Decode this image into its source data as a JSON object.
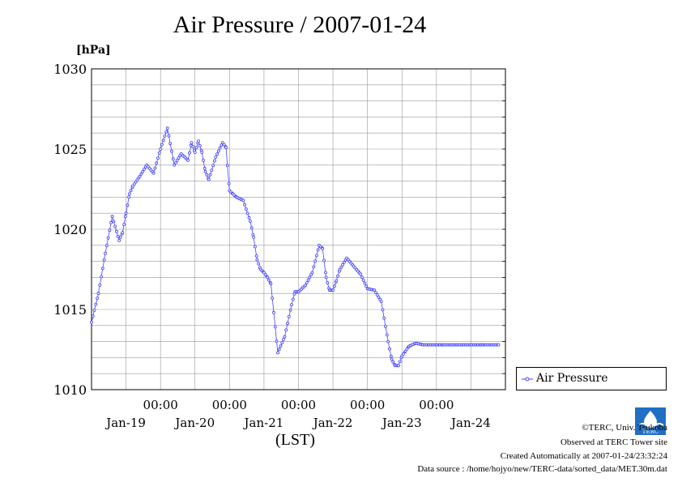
{
  "chart_data": {
    "type": "line",
    "title": "Air Pressure / 2007-01-24",
    "ylabel": "[hPa]",
    "xlabel": "(LST)",
    "ylim": [
      1010,
      1030
    ],
    "yticks": [
      1010,
      1015,
      1020,
      1025,
      1030
    ],
    "yticklabels": [
      "1010",
      "1015",
      "1020",
      "1025",
      "1030"
    ],
    "xlim": [
      -1.0,
      5.0
    ],
    "xticks": [
      0,
      1,
      2,
      3,
      4
    ],
    "xticklabels_time": [
      "00:00",
      "00:00",
      "00:00",
      "00:00",
      "00:00"
    ],
    "date_labels": [
      "Jan-19",
      "Jan-20",
      "Jan-21",
      "Jan-22",
      "Jan-23",
      "Jan-24"
    ],
    "grid": true,
    "legend_position": "right",
    "series": [
      {
        "name": "Air Pressure",
        "color": "#3b3bff",
        "x": [
          -1.0,
          -0.9,
          -0.8,
          -0.7,
          -0.6,
          -0.55,
          -0.5,
          -0.45,
          -0.4,
          -0.3,
          -0.2,
          -0.1,
          0.0,
          0.1,
          0.2,
          0.3,
          0.4,
          0.45,
          0.5,
          0.55,
          0.6,
          0.65,
          0.7,
          0.8,
          0.9,
          0.95,
          1.0,
          1.05,
          1.1,
          1.2,
          1.3,
          1.35,
          1.4,
          1.45,
          1.5,
          1.55,
          1.6,
          1.7,
          1.8,
          1.9,
          1.95,
          2.0,
          2.1,
          2.2,
          2.3,
          2.35,
          2.4,
          2.45,
          2.5,
          2.55,
          2.6,
          2.7,
          2.8,
          2.9,
          3.0,
          3.1,
          3.2,
          3.3,
          3.35,
          3.4,
          3.45,
          3.5,
          3.55,
          3.6,
          3.7,
          3.8,
          3.9,
          4.0,
          4.05,
          4.1,
          4.2,
          4.3,
          4.4,
          4.5,
          4.6,
          4.65,
          4.7,
          4.8,
          4.9,
          5.0
        ],
        "values": [
          1014.2,
          1016.0,
          1018.5,
          1020.8,
          1019.3,
          1019.8,
          1021.0,
          1022.2,
          1022.7,
          1023.3,
          1024.0,
          1023.5,
          1025.0,
          1026.3,
          1024.0,
          1024.7,
          1024.3,
          1025.4,
          1024.8,
          1025.5,
          1024.8,
          1023.6,
          1023.1,
          1024.5,
          1025.4,
          1025.1,
          1022.4,
          1022.2,
          1022.0,
          1021.8,
          1020.5,
          1019.5,
          1018.1,
          1017.5,
          1017.3,
          1017.0,
          1016.6,
          1012.3,
          1013.3,
          1015.3,
          1016.1,
          1016.1,
          1016.5,
          1017.3,
          1019.0,
          1018.8,
          1017.0,
          1016.2,
          1016.2,
          1016.8,
          1017.5,
          1018.2,
          1017.7,
          1017.2,
          1016.3,
          1016.2,
          1015.5,
          1013.0,
          1011.9,
          1011.5,
          1011.5,
          1012.1,
          1012.4,
          1012.7,
          1012.9,
          1012.8,
          1012.8,
          1012.8,
          1012.8,
          1012.8,
          1012.8,
          1012.8,
          1012.8,
          1012.8,
          1012.8,
          1012.8,
          1012.8,
          1012.8,
          1012.8,
          1012.8
        ]
      }
    ]
  },
  "legend": {
    "label": "Air Pressure"
  },
  "footer": {
    "copyright": "©TERC, Univ. Tsukuba",
    "observed": "Observed at TERC Tower site",
    "created": "Created Automatically at 2007-01-24/23:32:24",
    "source": "Data source : /home/hojyo/new/TERC-data/sorted_data/MET.30m.dat"
  },
  "logo": {
    "text": "TERC",
    "color": "#1f6fc4"
  }
}
